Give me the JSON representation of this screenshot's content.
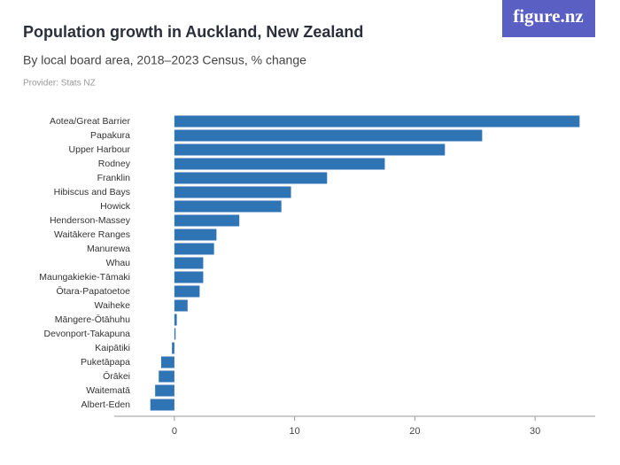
{
  "logo": "figure.nz",
  "chart_data": {
    "type": "hbar",
    "title": "Population growth in Auckland, New Zealand",
    "subtitle": "By local board area, 2018–2023 Census, % change",
    "provider": "Provider: Stats NZ",
    "categories": [
      "Aotea/Great Barrier",
      "Papakura",
      "Upper Harbour",
      "Rodney",
      "Franklin",
      "Hibiscus and Bays",
      "Howick",
      "Henderson-Massey",
      "Waitākere Ranges",
      "Manurewa",
      "Whau",
      "Maungakiekie-Tāmaki",
      "Ōtara-Papatoetoe",
      "Waiheke",
      "Māngere-Ōtāhuhu",
      "Devonport-Takapuna",
      "Kaipātiki",
      "Puketāpapa",
      "Ōrākei",
      "Waitematā",
      "Albert-Eden"
    ],
    "values": [
      33.7,
      25.6,
      22.5,
      17.5,
      12.7,
      9.7,
      8.9,
      5.4,
      3.5,
      3.3,
      2.4,
      2.4,
      2.1,
      1.1,
      0.2,
      0.1,
      -0.2,
      -1.1,
      -1.3,
      -1.6,
      -2.0
    ],
    "color": "#2f74b5",
    "xlim": [
      -5,
      35
    ],
    "xticks": [
      0,
      10,
      20,
      30
    ],
    "grid": false
  }
}
